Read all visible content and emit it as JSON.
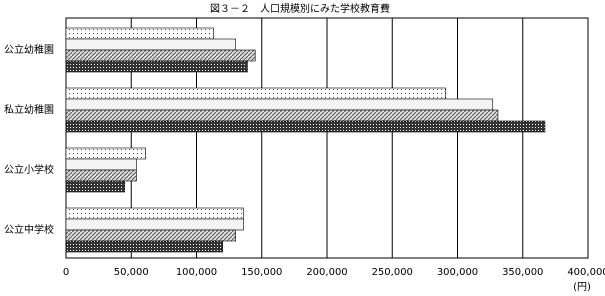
{
  "chart_data": {
    "type": "hbar",
    "title": "図３－２　人口規模別にみた学校教育費",
    "x_label": "(円)",
    "categories": [
      "公立幼稚園",
      "私立幼稚園",
      "公立小学校",
      "公立中学校"
    ],
    "series": [
      {
        "pattern": "sparse-dots",
        "values": [
          113000,
          291000,
          61000,
          136000
        ]
      },
      {
        "pattern": "plain",
        "values": [
          130000,
          327000,
          54000,
          136000
        ]
      },
      {
        "pattern": "hatch",
        "values": [
          145000,
          331000,
          54000,
          130000
        ]
      },
      {
        "pattern": "dense-dots",
        "values": [
          139000,
          367000,
          45000,
          120000
        ]
      }
    ],
    "xlim": [
      0,
      400000
    ],
    "xticks": [
      0,
      {
        "value": 50000,
        "label": "50,000"
      },
      {
        "value": 100000,
        "label": "100,000"
      },
      {
        "value": 150000,
        "label": "150,000"
      },
      {
        "value": 200000,
        "label": "200,000"
      },
      {
        "value": 250000,
        "label": "250,000"
      },
      {
        "value": 300000,
        "label": "300,000"
      },
      {
        "value": 350000,
        "label": "350,000"
      },
      {
        "value": 400000,
        "label": "400,000"
      }
    ],
    "grid": true
  }
}
